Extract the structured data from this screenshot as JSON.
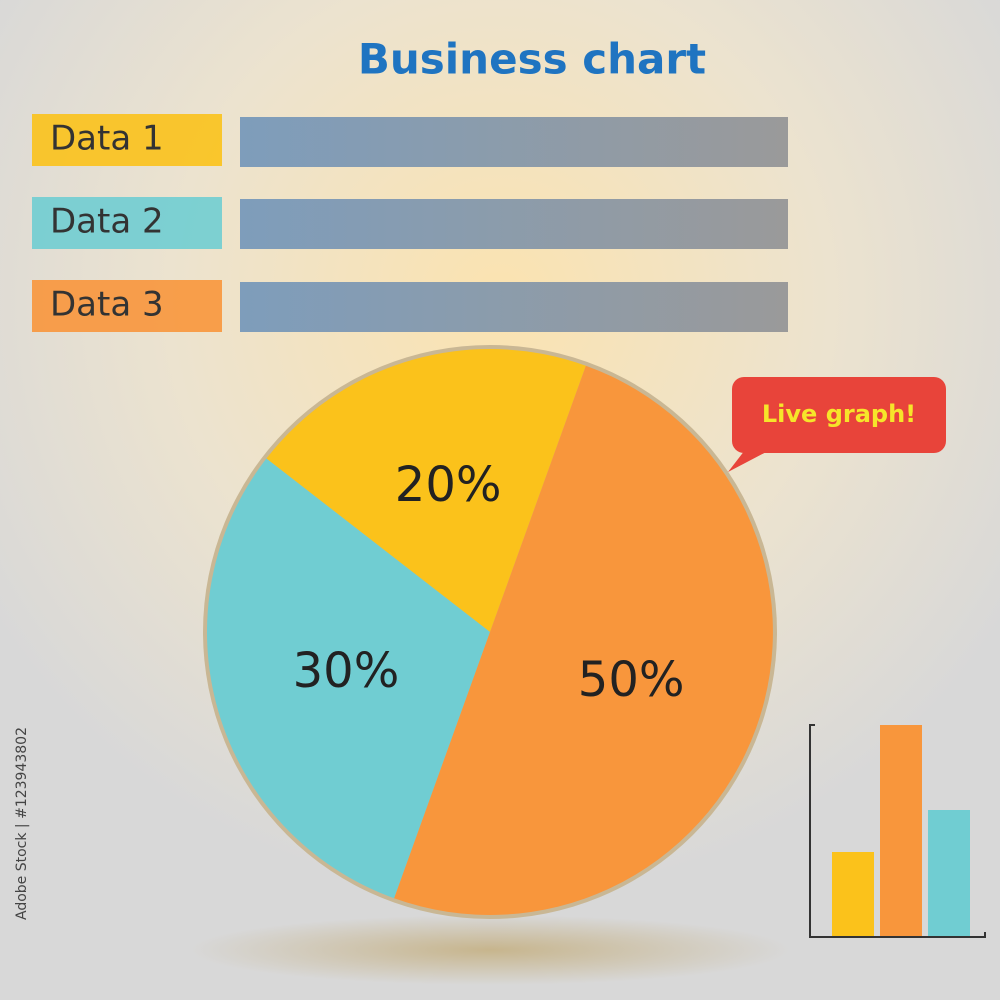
{
  "chart_data": {
    "type": "pie",
    "title": "Business chart",
    "categories": [
      "Data 1",
      "Data 2",
      "Data 3"
    ],
    "values": [
      20,
      30,
      50
    ],
    "value_labels": [
      "20%",
      "30%",
      "50%"
    ],
    "colors": [
      "#fbc21b",
      "#70cdd2",
      "#f8963c"
    ],
    "annotation": "Live graph!"
  },
  "watermark": "Adobe Stock | #123943802"
}
